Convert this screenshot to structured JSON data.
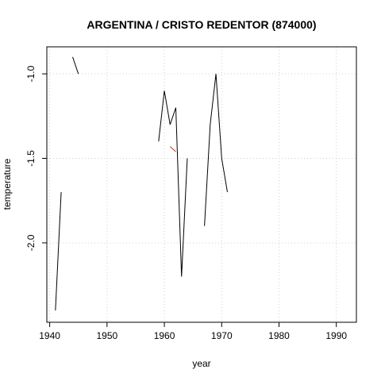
{
  "chart_data": {
    "type": "line",
    "title": "ARGENTINA / CRISTO REDENTOR (874000)",
    "xlabel": "year",
    "ylabel": "temperature",
    "xlim": [
      1939.5,
      1993.5
    ],
    "ylim": [
      -2.47,
      -0.84
    ],
    "x_ticks": [
      1940,
      1950,
      1960,
      1970,
      1980,
      1990
    ],
    "x_tick_labels": [
      "1940",
      "1950",
      "1960",
      "1970",
      "1980",
      "1990"
    ],
    "y_ticks": [
      -2.0,
      -1.5,
      -1.0
    ],
    "y_tick_labels": [
      "-2.0",
      "-1.5",
      "-1.0"
    ],
    "grid": true,
    "colors": {
      "main_series": "#000000",
      "secondary_series": "#cc3300",
      "grid": "#d0d0d0"
    },
    "series": [
      {
        "color": "#000000",
        "segments": [
          [
            [
              1941,
              -2.4
            ],
            [
              1942,
              -1.7
            ]
          ],
          [
            [
              1944,
              -0.9
            ],
            [
              1945,
              -1.0
            ]
          ],
          [
            [
              1959,
              -1.4
            ],
            [
              1960,
              -1.1
            ],
            [
              1961,
              -1.3
            ],
            [
              1962,
              -1.2
            ],
            [
              1963,
              -2.2
            ],
            [
              1964,
              -1.5
            ]
          ],
          [
            [
              1967,
              -1.9
            ],
            [
              1968,
              -1.3
            ],
            [
              1969,
              -1.0
            ],
            [
              1970,
              -1.5
            ],
            [
              1971,
              -1.7
            ]
          ]
        ]
      },
      {
        "color": "#cc3300",
        "segments": [
          [
            [
              1961,
              -1.43
            ],
            [
              1962,
              -1.46
            ]
          ]
        ]
      }
    ]
  }
}
